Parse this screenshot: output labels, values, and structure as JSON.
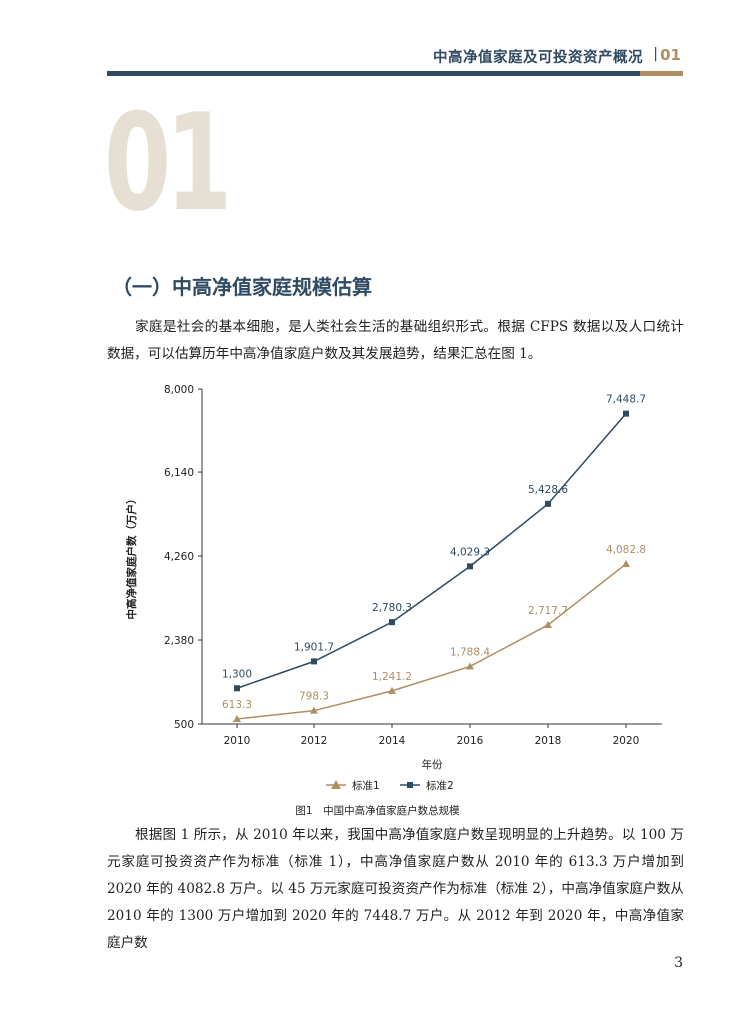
{
  "header": {
    "title": "中高净值家庭及可投资资产概况",
    "separator": "|",
    "chapter_no": "01"
  },
  "big_number": "01",
  "section_title": "（一）中高净值家庭规模估算",
  "paragraphs": {
    "intro": "家庭是社会的基本细胞，是人类社会生活的基础组织形式。根据 CFPS 数据以及人口统计数据，可以估算历年中高净值家庭户数及其发展趋势，结果汇总在图 1。",
    "analysis": "根据图 1 所示，从 2010 年以来，我国中高净值家庭户数呈现明显的上升趋势。以 100 万元家庭可投资资产作为标准（标准 1），中高净值家庭户数从 2010 年的 613.3 万户增加到 2020 年的 4082.8 万户。以 45 万元家庭可投资资产作为标准（标准 2），中高净值家庭户数从 2010 年的 1300 万户增加到 2020 年的 7448.7 万户。从 2012 年到 2020 年，中高净值家庭户数"
  },
  "figure_caption": "图1　中国中高净值家庭户数总规模",
  "page_number": "3",
  "colors": {
    "primary": "#2f4a63",
    "accent": "#b08e64",
    "big_number": "#e5e0d3"
  },
  "chart_data": {
    "type": "line",
    "title": "",
    "xlabel": "年份",
    "ylabel": "中高净值家庭户数（万户）",
    "x": [
      2010,
      2012,
      2014,
      2016,
      2018,
      2020
    ],
    "x_tick_labels": [
      "2010",
      "2012",
      "2014",
      "2016",
      "2018",
      "2020"
    ],
    "ylim": [
      500,
      8000
    ],
    "y_ticks": [
      500,
      2380,
      4260,
      6140,
      8000
    ],
    "y_tick_labels": [
      "500",
      "2,380",
      "4,260",
      "6,140",
      "8,000"
    ],
    "grid": false,
    "legend_position": "bottom",
    "series": [
      {
        "name": "标准1",
        "marker": "triangle",
        "color": "#b08e64",
        "values": [
          613.3,
          798.3,
          1241.2,
          1788.4,
          2717.7,
          4082.8
        ],
        "labels": [
          "613.3",
          "798.3",
          "1,241.2",
          "1,788.4",
          "2,717.7",
          "4,082.8"
        ]
      },
      {
        "name": "标准2",
        "marker": "square",
        "color": "#2f4a63",
        "values": [
          1300,
          1901.7,
          2780.3,
          4029.3,
          5428.6,
          7448.7
        ],
        "labels": [
          "1,300",
          "1,901.7",
          "2,780.3",
          "4,029.3",
          "5,428.6",
          "7,448.7"
        ]
      }
    ]
  }
}
